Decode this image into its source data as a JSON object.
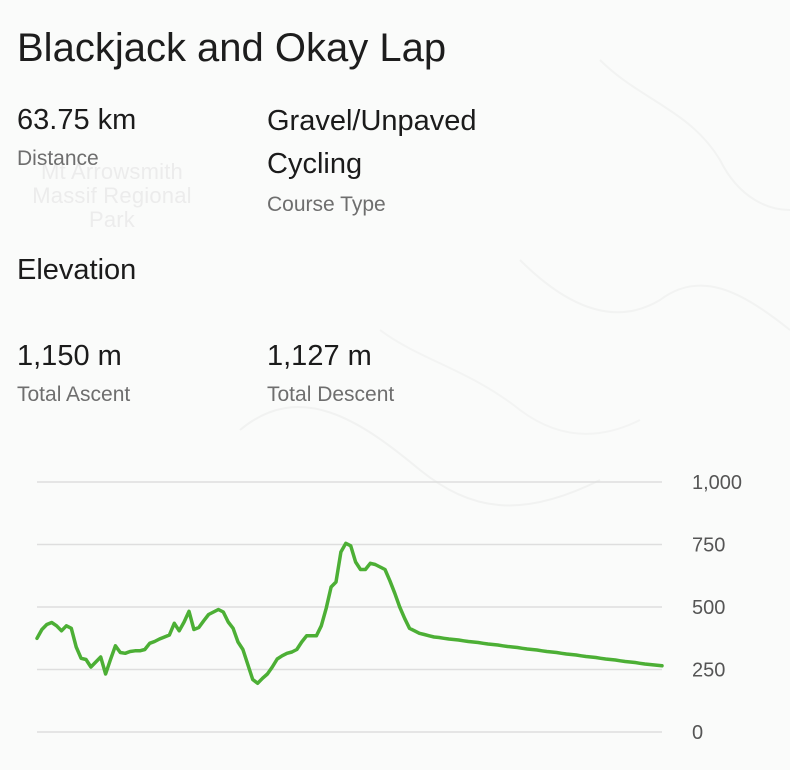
{
  "route": {
    "title": "Blackjack and Okay Lap",
    "map_label": "Mt Arrowsmith Massif Regional Park",
    "distance": {
      "value": "63.75 km",
      "label": "Distance"
    },
    "course_type": {
      "value": "Gravel/Unpaved Cycling",
      "label": "Course Type"
    },
    "elevation_heading": "Elevation",
    "total_ascent": {
      "value": "1,150 m",
      "label": "Total Ascent"
    },
    "total_descent": {
      "value": "1,127 m",
      "label": "Total Descent"
    }
  },
  "colors": {
    "line": "#4caf35",
    "grid": "#dedede",
    "background": "#fafbfa"
  },
  "chart_data": {
    "type": "line",
    "title": "",
    "xlabel": "",
    "ylabel": "",
    "ylim": [
      0,
      1000
    ],
    "yticks": [
      1000,
      750,
      500,
      250,
      0
    ],
    "ytick_labels": [
      "1,000",
      "750",
      "500",
      "250",
      "0"
    ],
    "grid": true,
    "series": [
      {
        "x": [
          0,
          0.5,
          1,
          1.5,
          2,
          2.5,
          3,
          3.5,
          4,
          4.5,
          5,
          5.5,
          6,
          6.5,
          7,
          7.5,
          8,
          8.5,
          9,
          9.5,
          10,
          10.5,
          11,
          11.5,
          12,
          12.5,
          13,
          13.5,
          14,
          14.5,
          15,
          15.5,
          16,
          16.5,
          17,
          17.5,
          18,
          18.5,
          19,
          19.5,
          20,
          20.5,
          21,
          21.5,
          22,
          22.5,
          23,
          23.5,
          24,
          24.5,
          25,
          25.5,
          26,
          26.5,
          27,
          27.5,
          28,
          28.5,
          29,
          29.5,
          30,
          30.5,
          31,
          31.5,
          32,
          32.5,
          33,
          33.5,
          34,
          34.5,
          35,
          35.5,
          36,
          36.5,
          37,
          37.5,
          38,
          38.5,
          39,
          39.5,
          40,
          40.5,
          41,
          41.5,
          42,
          42.5,
          43,
          43.5,
          44,
          44.5,
          45,
          45.5,
          46,
          46.5,
          47,
          47.5,
          48,
          48.5,
          49,
          49.5,
          50,
          50.5,
          51,
          51.5,
          52,
          52.5,
          53,
          53.5,
          54,
          54.5,
          55,
          55.5,
          56,
          56.5,
          57,
          57.5,
          58,
          58.5,
          59,
          59.5,
          60,
          60.5,
          61,
          61.5,
          62,
          62.5,
          63,
          63.75
        ],
        "values": [
          375,
          410,
          430,
          438,
          425,
          405,
          425,
          415,
          340,
          295,
          290,
          260,
          280,
          300,
          232,
          290,
          345,
          318,
          315,
          322,
          325,
          325,
          330,
          355,
          362,
          372,
          380,
          388,
          435,
          405,
          440,
          483,
          410,
          418,
          445,
          470,
          480,
          490,
          480,
          440,
          415,
          360,
          330,
          270,
          210,
          195,
          215,
          232,
          260,
          292,
          305,
          315,
          320,
          330,
          360,
          385,
          385,
          385,
          425,
          495,
          580,
          600,
          720,
          755,
          745,
          680,
          650,
          650,
          675,
          670,
          660,
          650,
          605,
          555,
          500,
          455,
          415,
          405,
          395,
          390,
          385,
          380,
          378,
          375,
          372,
          370,
          368,
          365,
          362,
          360,
          358,
          355,
          352,
          350,
          348,
          345,
          342,
          340,
          338,
          335,
          332,
          330,
          328,
          325,
          322,
          320,
          318,
          315,
          312,
          310,
          308,
          305,
          302,
          300,
          298,
          295,
          292,
          290,
          288,
          285,
          282,
          280,
          278,
          275,
          272,
          270,
          268,
          265
        ]
      }
    ]
  }
}
